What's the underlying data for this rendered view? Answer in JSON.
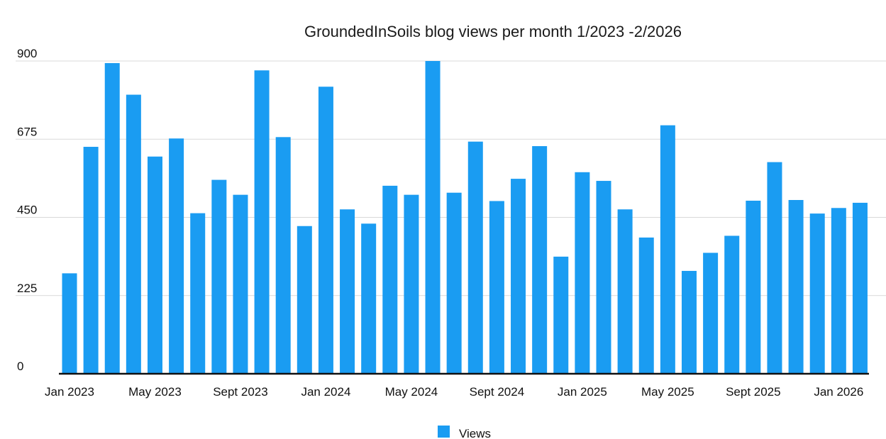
{
  "chart_data": {
    "type": "bar",
    "title": "GroundedInSoils blog views per month 1/2023 -2/2026",
    "xlabel": "",
    "ylabel": "",
    "ylim": [
      0,
      900
    ],
    "yticks": [
      0,
      225,
      450,
      675,
      900
    ],
    "grid": true,
    "legend_position": "bottom",
    "bar_color": "#1a9cf2",
    "grid_color": "#d9d9d9",
    "x_tick_labels": [
      {
        "label": "Jan 2023",
        "index": 0
      },
      {
        "label": "May 2023",
        "index": 4
      },
      {
        "label": "Sept 2023",
        "index": 8
      },
      {
        "label": "Jan 2024",
        "index": 12
      },
      {
        "label": "May 2024",
        "index": 16
      },
      {
        "label": "Sept 2024",
        "index": 20
      },
      {
        "label": "Jan 2025",
        "index": 24
      },
      {
        "label": "May 2025",
        "index": 28
      },
      {
        "label": "Sept 2025",
        "index": 32
      },
      {
        "label": "Jan 2026",
        "index": 36
      }
    ],
    "categories": [
      "2023-01",
      "2023-02",
      "2023-03",
      "2023-04",
      "2023-05",
      "2023-06",
      "2023-07",
      "2023-08",
      "2023-09",
      "2023-10",
      "2023-11",
      "2023-12",
      "2024-01",
      "2024-02",
      "2024-03",
      "2024-04",
      "2024-05",
      "2024-06",
      "2024-07",
      "2024-08",
      "2024-09",
      "2024-10",
      "2024-11",
      "2024-12",
      "2025-01",
      "2025-02",
      "2025-03",
      "2025-04",
      "2025-05",
      "2025-06",
      "2025-07",
      "2025-08",
      "2025-09",
      "2025-10",
      "2025-11",
      "2025-12",
      "2026-01",
      "2026-02"
    ],
    "series": [
      {
        "name": "Views",
        "values": [
          289,
          653,
          894,
          803,
          625,
          677,
          462,
          558,
          515,
          873,
          681,
          425,
          826,
          473,
          432,
          541,
          515,
          900,
          521,
          668,
          497,
          561,
          655,
          337,
          580,
          555,
          473,
          392,
          715,
          296,
          348,
          397,
          498,
          609,
          500,
          461,
          477,
          492
        ]
      }
    ]
  }
}
